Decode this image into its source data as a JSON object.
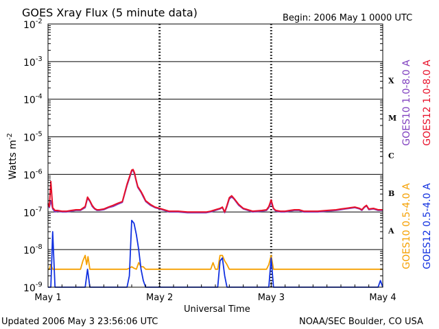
{
  "chart_data": {
    "type": "line",
    "title": "GOES Xray Flux (5 minute data)",
    "begin_label": "Begin:  2006 May 1 0000 UTC",
    "xlabel": "Universal Time",
    "ylabel": "Watts m",
    "ylabel_sup": "-2",
    "y_scale": "log",
    "ylim": [
      1e-09,
      0.01
    ],
    "xlim": [
      0,
      72
    ],
    "x_unit": "hours since 2006 May 1 0000 UTC",
    "x_ticks": [
      {
        "x": 0,
        "label": "May 1"
      },
      {
        "x": 24,
        "label": "May 2"
      },
      {
        "x": 48,
        "label": "May 3"
      },
      {
        "x": 72,
        "label": "May 4"
      }
    ],
    "y_ticks": [
      {
        "exp": -2,
        "base": "10",
        "sup": "-2"
      },
      {
        "exp": -3,
        "base": "10",
        "sup": "-3"
      },
      {
        "exp": -4,
        "base": "10",
        "sup": "-4"
      },
      {
        "exp": -5,
        "base": "10",
        "sup": "-5"
      },
      {
        "exp": -6,
        "base": "10",
        "sup": "-6"
      },
      {
        "exp": -7,
        "base": "10",
        "sup": "-7"
      },
      {
        "exp": -8,
        "base": "10",
        "sup": "-8"
      },
      {
        "exp": -9,
        "base": "10",
        "sup": "-9"
      }
    ],
    "flare_classes": [
      {
        "label": "X",
        "exp": -3.5
      },
      {
        "label": "M",
        "exp": -4.5
      },
      {
        "label": "C",
        "exp": -5.5
      },
      {
        "label": "B",
        "exp": -6.5
      },
      {
        "label": "A",
        "exp": -7.5
      }
    ],
    "series": [
      {
        "name": "GOES10 1.0-8.0 A",
        "color": "#7f3fbf",
        "x": [
          0,
          0.3,
          0.6,
          1,
          1.5,
          2,
          3,
          4,
          5,
          6,
          7,
          8,
          8.5,
          9,
          9.5,
          10,
          10.5,
          11,
          12,
          13,
          14,
          15,
          16,
          17,
          18,
          18.3,
          18.6,
          18.9,
          19.3,
          20,
          20.5,
          21,
          22,
          23,
          24,
          25,
          26,
          27,
          28,
          30,
          32,
          34,
          35,
          36,
          37,
          37.5,
          38,
          38.5,
          39,
          39.5,
          40,
          41,
          42,
          43,
          44,
          46,
          47,
          47.5,
          48,
          48.5,
          49,
          50,
          51,
          52,
          53,
          54,
          55,
          56,
          58,
          60,
          62,
          63,
          64,
          65,
          66,
          67,
          67.5,
          68,
          68.5,
          69,
          70,
          71,
          72
        ],
        "y": [
          1.6e-07,
          1.3e-07,
          2e-07,
          1.2e-07,
          1e-07,
          1.05e-07,
          1e-07,
          1e-07,
          1.05e-07,
          1.1e-07,
          1.1e-07,
          1.3e-07,
          2.3e-07,
          1.9e-07,
          1.4e-07,
          1.2e-07,
          1.1e-07,
          1.1e-07,
          1.15e-07,
          1.3e-07,
          1.4e-07,
          1.6e-07,
          1.8e-07,
          5e-07,
          1.2e-06,
          1.3e-06,
          1e-06,
          7e-07,
          4.5e-07,
          3.3e-07,
          2.5e-07,
          1.9e-07,
          1.5e-07,
          1.3e-07,
          1.2e-07,
          1.1e-07,
          1e-07,
          1e-07,
          1e-07,
          9.5e-08,
          9.5e-08,
          9.5e-08,
          1e-07,
          1.1e-07,
          1.2e-07,
          1.3e-07,
          9.5e-08,
          1.4e-07,
          2.2e-07,
          2.5e-07,
          2.2e-07,
          1.5e-07,
          1.2e-07,
          1.1e-07,
          1e-07,
          1.05e-07,
          1.1e-07,
          1.3e-07,
          1.8e-07,
          1.2e-07,
          1.05e-07,
          1e-07,
          1e-07,
          1.05e-07,
          1.1e-07,
          1.1e-07,
          1e-07,
          1e-07,
          1e-07,
          1.05e-07,
          1.1e-07,
          1.15e-07,
          1.2e-07,
          1.25e-07,
          1.3e-07,
          1.2e-07,
          1.1e-07,
          1.3e-07,
          1.45e-07,
          1.15e-07,
          1.2e-07,
          1.1e-07,
          1.1e-07
        ]
      },
      {
        "name": "GOES12 1.0-8.0 A",
        "color": "#e8102a",
        "x": [
          0,
          0.3,
          0.6,
          1,
          1.5,
          2,
          3,
          4,
          5,
          6,
          7,
          8,
          8.5,
          9,
          9.5,
          10,
          10.5,
          11,
          12,
          13,
          14,
          15,
          16,
          17,
          18,
          18.3,
          18.6,
          18.9,
          19.3,
          20,
          20.5,
          21,
          22,
          23,
          24,
          25,
          26,
          27,
          28,
          30,
          32,
          34,
          35,
          36,
          37,
          37.5,
          38,
          38.5,
          39,
          39.5,
          40,
          41,
          42,
          43,
          44,
          46,
          47,
          47.5,
          48,
          48.5,
          49,
          50,
          51,
          52,
          53,
          54,
          55,
          56,
          58,
          60,
          62,
          63,
          64,
          65,
          66,
          67,
          67.5,
          68,
          68.5,
          69,
          70,
          71,
          72
        ],
        "y": [
          1.7e-07,
          1.4e-07,
          6.5e-07,
          1.3e-07,
          1.1e-07,
          1.1e-07,
          1.05e-07,
          1.05e-07,
          1.1e-07,
          1.15e-07,
          1.15e-07,
          1.4e-07,
          2.5e-07,
          2e-07,
          1.5e-07,
          1.25e-07,
          1.15e-07,
          1.15e-07,
          1.2e-07,
          1.35e-07,
          1.5e-07,
          1.7e-07,
          1.9e-07,
          5.5e-07,
          1.3e-06,
          1.35e-06,
          1.1e-06,
          7.5e-07,
          4.8e-07,
          3.5e-07,
          2.7e-07,
          2e-07,
          1.6e-07,
          1.35e-07,
          1.25e-07,
          1.15e-07,
          1.05e-07,
          1.05e-07,
          1.05e-07,
          1e-07,
          1e-07,
          1e-07,
          1.05e-07,
          1.15e-07,
          1.25e-07,
          1.35e-07,
          1e-07,
          1.5e-07,
          2.4e-07,
          2.7e-07,
          2.3e-07,
          1.6e-07,
          1.25e-07,
          1.15e-07,
          1.05e-07,
          1.1e-07,
          1.15e-07,
          1.4e-07,
          2.1e-07,
          1.25e-07,
          1.1e-07,
          1.05e-07,
          1.05e-07,
          1.1e-07,
          1.15e-07,
          1.15e-07,
          1.05e-07,
          1.05e-07,
          1.05e-07,
          1.1e-07,
          1.15e-07,
          1.2e-07,
          1.25e-07,
          1.3e-07,
          1.35e-07,
          1.25e-07,
          1.15e-07,
          1.35e-07,
          1.5e-07,
          1.2e-07,
          1.25e-07,
          1.15e-07,
          1.15e-07
        ]
      },
      {
        "name": "GOES10 0.5-4.0 A",
        "color": "#f5a000",
        "x": [
          0,
          0.3,
          0.6,
          1,
          2,
          3,
          4,
          5,
          6,
          7,
          7.5,
          8,
          8.3,
          8.6,
          9,
          9.5,
          10,
          11,
          12,
          13,
          14,
          15,
          16,
          17,
          17.5,
          18,
          18.5,
          19,
          19.5,
          20,
          20.5,
          21,
          22,
          23,
          24,
          26,
          28,
          30,
          32,
          34,
          35,
          35.5,
          36,
          36.5,
          37,
          37.5,
          38,
          38.5,
          39,
          40,
          42,
          44,
          46,
          47,
          47.5,
          48,
          48.5,
          49,
          50,
          52,
          54,
          56,
          58,
          60,
          62,
          64,
          66,
          68,
          69,
          70,
          71,
          72
        ],
        "y": [
          3e-09,
          3e-09,
          4e-09,
          3e-09,
          3e-09,
          3e-09,
          3e-09,
          3e-09,
          3e-09,
          3e-09,
          5e-09,
          7e-09,
          4e-09,
          6.5e-09,
          3e-09,
          3e-09,
          3e-09,
          3e-09,
          3e-09,
          3e-09,
          3e-09,
          3e-09,
          3e-09,
          3e-09,
          3.2e-09,
          3.5e-09,
          3.2e-09,
          3e-09,
          4.5e-09,
          3.5e-09,
          3.5e-09,
          3e-09,
          3e-09,
          3e-09,
          3e-09,
          3e-09,
          3e-09,
          3e-09,
          3e-09,
          3e-09,
          3e-09,
          4.5e-09,
          3e-09,
          3e-09,
          7e-09,
          7e-09,
          5e-09,
          4e-09,
          3e-09,
          3e-09,
          3e-09,
          3e-09,
          3e-09,
          3e-09,
          4e-09,
          7e-09,
          3e-09,
          3e-09,
          3e-09,
          3e-09,
          3e-09,
          3e-09,
          3e-09,
          3e-09,
          3e-09,
          3e-09,
          3e-09,
          3e-09,
          3e-09,
          3e-09,
          3e-09,
          3e-09
        ]
      },
      {
        "name": "GOES12 0.5-4.0 A",
        "color": "#1030e0",
        "x": [
          0,
          0.3,
          0.6,
          1,
          1.5,
          2,
          2.5,
          3,
          4,
          5,
          6,
          7,
          8,
          8.5,
          9,
          9.5,
          10,
          10.5,
          11,
          12,
          13,
          14,
          15,
          16,
          17,
          17.5,
          18,
          18.5,
          19,
          19.5,
          20,
          20.5,
          21,
          21.5,
          22,
          23,
          24,
          26,
          28,
          30,
          32,
          34,
          35,
          35.5,
          36,
          36.5,
          37,
          37.5,
          38,
          38.5,
          39,
          40,
          42,
          44,
          46,
          47,
          47.5,
          48,
          48.5,
          49,
          50,
          52,
          54,
          56,
          58,
          60,
          62,
          64,
          66,
          68,
          70,
          71,
          71.5,
          72
        ],
        "y": [
          1e-09,
          1e-09,
          1e-09,
          3e-08,
          1e-09,
          1e-09,
          1e-09,
          1e-09,
          1e-09,
          1e-09,
          1e-09,
          1e-09,
          1e-09,
          3e-09,
          1e-09,
          1e-09,
          1e-09,
          1e-09,
          1e-09,
          1e-09,
          1e-09,
          1e-09,
          1e-09,
          1e-09,
          1e-09,
          2e-09,
          6e-08,
          5e-08,
          2.5e-08,
          1e-08,
          3e-09,
          1.5e-09,
          1e-09,
          1e-09,
          1e-09,
          1e-09,
          1e-09,
          1e-09,
          1e-09,
          1e-09,
          1e-09,
          1e-09,
          1e-09,
          1e-09,
          1e-09,
          1e-09,
          5e-09,
          6e-09,
          2e-09,
          1e-09,
          1e-09,
          1e-09,
          1e-09,
          1e-09,
          1e-09,
          1e-09,
          1e-09,
          6e-09,
          1e-09,
          1e-09,
          1e-09,
          1e-09,
          1e-09,
          1e-09,
          1e-09,
          1e-09,
          1e-09,
          1e-09,
          1e-09,
          1e-09,
          1e-09,
          1e-09,
          1.5e-09,
          1e-09
        ]
      }
    ],
    "legend_placement": "right, vertical"
  },
  "footer": {
    "updated": "Updated 2006 May  3 23:56:06 UTC",
    "credit": "NOAA/SEC Boulder, CO USA"
  }
}
